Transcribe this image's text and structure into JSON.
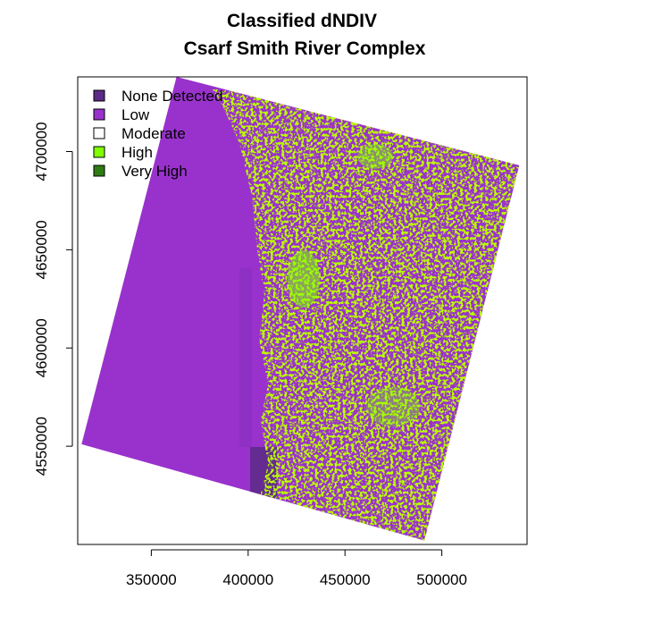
{
  "chart_data": {
    "type": "heatmap",
    "title": "Classified dNDIV",
    "subtitle": "Csarf Smith River Complex",
    "xlabel": "",
    "ylabel": "",
    "xlim": [
      312000,
      544000
    ],
    "ylim": [
      4500000,
      4738000
    ],
    "x_ticks": [
      350000,
      400000,
      450000,
      500000
    ],
    "y_ticks": [
      4550000,
      4600000,
      4650000,
      4700000
    ],
    "x_tick_labels": [
      "350000",
      "400000",
      "450000",
      "500000"
    ],
    "y_tick_labels": [
      "4550000",
      "4600000",
      "4650000",
      "4700000"
    ],
    "grid": false,
    "legend_position": "top-left",
    "classes": [
      {
        "name": "None Detected",
        "color": "#5b2a86"
      },
      {
        "name": "Low",
        "color": "#9932cc"
      },
      {
        "name": "Moderate",
        "color": "#ffffff"
      },
      {
        "name": "High",
        "color": "#7fff00"
      },
      {
        "name": "Very High",
        "color": "#2e7d12"
      }
    ],
    "scene_corners": [
      [
        363000,
        4738000
      ],
      [
        540000,
        4693000
      ],
      [
        491000,
        4502000
      ],
      [
        314000,
        4551000
      ]
    ]
  }
}
